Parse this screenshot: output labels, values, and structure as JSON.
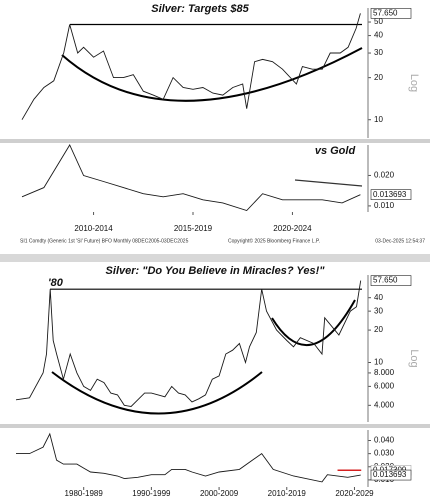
{
  "footer": {
    "source": "SI1 Comdty (Generic 1st 'SI' Future) BFO Monthly 08DEC2005-03DEC2025",
    "copyright": "Copyright© 2025 Bloomberg Finance L.P.",
    "timestamp": "03-Dec-2025 12:54:37"
  },
  "chart_data": [
    {
      "type": "line",
      "title": "Silver: Targets $85",
      "log_scale": true,
      "axis_label": "Log",
      "color": "#1a1a1a",
      "xlim": [
        2008.7,
        2026.3
      ],
      "ylim": [
        7.4,
        63
      ],
      "yticks": [
        10,
        20,
        30,
        40,
        50
      ],
      "resistance": 48,
      "x": [
        2008.9,
        2009.5,
        2010.0,
        2010.5,
        2011.0,
        2011.3,
        2011.7,
        2012.0,
        2012.5,
        2013.0,
        2013.5,
        2014.0,
        2014.5,
        2015.0,
        2015.5,
        2016.0,
        2016.5,
        2017.0,
        2017.5,
        2018.0,
        2018.5,
        2019.0,
        2019.5,
        2020.0,
        2020.2,
        2020.6,
        2021.0,
        2021.5,
        2022.0,
        2022.7,
        2023.0,
        2023.5,
        2024.0,
        2024.4,
        2024.9,
        2025.3,
        2025.7,
        2025.92
      ],
      "values": [
        10,
        14,
        17,
        19,
        30,
        48,
        30,
        33,
        28,
        31,
        20,
        20,
        21,
        16,
        15,
        14,
        20,
        17,
        16.5,
        17,
        15.5,
        15,
        17,
        18,
        12,
        26,
        27,
        26,
        23,
        18,
        24,
        23,
        23,
        30,
        30,
        33,
        45,
        57.65
      ],
      "last_value_label": "57.650"
    },
    {
      "type": "line",
      "annotation": "vs Gold",
      "color": "#1a1a1a",
      "xlim": [
        2008.7,
        2026.3
      ],
      "ylim": [
        0.008,
        0.03
      ],
      "yticks": [
        {
          "value": 0.01,
          "label": "0.010"
        },
        {
          "value": 0.02,
          "label": "0.020"
        }
      ],
      "xticks": [
        {
          "value": 2012.5,
          "label": "2010-2014"
        },
        {
          "value": 2017.5,
          "label": "2015-2019"
        },
        {
          "value": 2022.5,
          "label": "2020-2024"
        }
      ],
      "x": [
        2008.9,
        2010,
        2011.3,
        2012,
        2013,
        2014,
        2015,
        2016,
        2017,
        2018,
        2019,
        2020.2,
        2021,
        2022,
        2023,
        2024,
        2025,
        2025.92
      ],
      "values": [
        0.013,
        0.016,
        0.03,
        0.02,
        0.018,
        0.016,
        0.014,
        0.013,
        0.014,
        0.012,
        0.011,
        0.0085,
        0.014,
        0.012,
        0.012,
        0.012,
        0.011,
        0.013693
      ],
      "last_value_label": "0.013693"
    },
    {
      "type": "line",
      "title": "Silver: \"Do You Believe in Miracles? Yes!\"",
      "annotation": "'80",
      "log_scale": true,
      "axis_label": "Log",
      "color": "#1a1a1a",
      "xlim": [
        1975,
        2027
      ],
      "ylim": [
        2.8,
        65
      ],
      "resistance": 48,
      "yticks": [
        {
          "value": 4,
          "label": "4.000"
        },
        {
          "value": 6,
          "label": "6.000"
        },
        {
          "value": 8,
          "label": "8.000"
        },
        10,
        20,
        30,
        40
      ],
      "x": [
        1975,
        1977,
        1979,
        1979.5,
        1980.05,
        1980.5,
        1981,
        1982,
        1983,
        1984,
        1985,
        1986,
        1987,
        1988,
        1989,
        1990,
        1991,
        1992,
        1993,
        1994,
        1995,
        1996,
        1997,
        1998,
        1999,
        2000,
        2001,
        2002,
        2003,
        2004,
        2005,
        2006,
        2007,
        2008,
        2008.9,
        2009.5,
        2010.5,
        2011.3,
        2012,
        2013.5,
        2015,
        2016,
        2017,
        2019,
        2020.2,
        2020.6,
        2022.7,
        2024.4,
        2025.3,
        2025.92
      ],
      "values": [
        4.5,
        4.7,
        8,
        12,
        48,
        16,
        12,
        7,
        12,
        8,
        6,
        5.5,
        7,
        6.5,
        5.2,
        5,
        4,
        3.9,
        4.5,
        5.2,
        5.2,
        5,
        4.8,
        6,
        5.2,
        5,
        4.3,
        4.6,
        5,
        7,
        7.5,
        12,
        13,
        15,
        10,
        14,
        19,
        48,
        30,
        20,
        16,
        14,
        17,
        15,
        12,
        26,
        18,
        30,
        33,
        57.65
      ],
      "last_value_label": "57.650"
    },
    {
      "type": "line",
      "color": "#1a1a1a",
      "ma_value": 0.017309,
      "ma_color": "#d62020",
      "xlim": [
        1975,
        2027
      ],
      "ylim": [
        0.0046,
        0.048
      ],
      "yticks": [
        {
          "value": 0.01,
          "label": "0.010"
        },
        {
          "value": 0.02,
          "label": "0.020"
        },
        {
          "value": 0.03,
          "label": "0.030"
        },
        {
          "value": 0.04,
          "label": "0.040"
        }
      ],
      "xticks": [
        {
          "value": 1985,
          "label": "1980-1989"
        },
        {
          "value": 1995,
          "label": "1990-1999"
        },
        {
          "value": 2005,
          "label": "2000-2009"
        },
        {
          "value": 2015,
          "label": "2010-2019"
        },
        {
          "value": 2025,
          "label": "2020-2029"
        }
      ],
      "x": [
        1975,
        1977,
        1979,
        1980,
        1981,
        1982,
        1984,
        1985,
        1986,
        1988,
        1990,
        1991,
        1993,
        1995,
        1997,
        1998,
        2000,
        2001,
        2003,
        2005,
        2008,
        2011.3,
        2013,
        2016,
        2020.2,
        2021,
        2024,
        2025.92
      ],
      "values": [
        0.03,
        0.03,
        0.035,
        0.045,
        0.025,
        0.022,
        0.022,
        0.019,
        0.016,
        0.015,
        0.013,
        0.011,
        0.012,
        0.014,
        0.014,
        0.018,
        0.018,
        0.016,
        0.013,
        0.016,
        0.018,
        0.03,
        0.018,
        0.013,
        0.0085,
        0.014,
        0.012,
        0.013693
      ],
      "last_value_label": "0.013693"
    }
  ]
}
